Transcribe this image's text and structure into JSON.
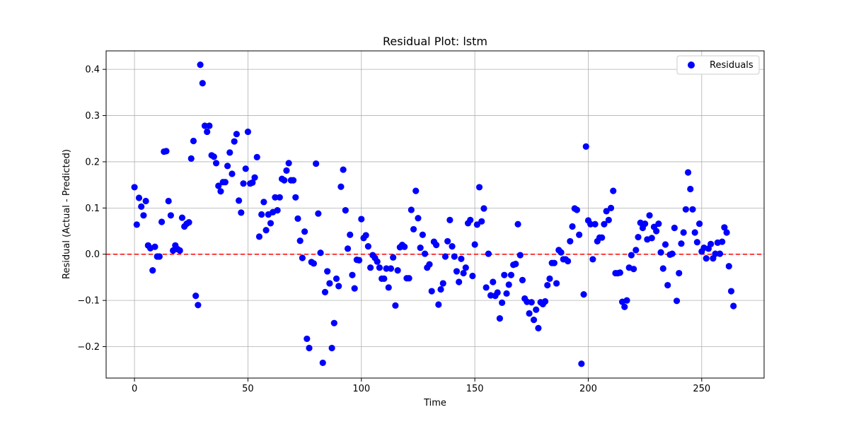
{
  "chart_data": {
    "type": "scatter",
    "title": "Residual Plot: lstm",
    "xlabel": "Time",
    "ylabel": "Residual (Actual - Predicted)",
    "xlim": [
      -12.5,
      277.5
    ],
    "ylim": [
      -0.268,
      0.44
    ],
    "x_ticks": [
      0,
      50,
      100,
      150,
      200,
      250
    ],
    "y_ticks": [
      -0.2,
      -0.1,
      0.0,
      0.1,
      0.2,
      0.3,
      0.4
    ],
    "x_tick_labels": [
      "0",
      "50",
      "100",
      "150",
      "200",
      "250"
    ],
    "y_tick_labels": [
      "−0.2",
      "−0.1",
      "0.0",
      "0.1",
      "0.2",
      "0.3",
      "0.4"
    ],
    "grid": true,
    "legend": {
      "position": "top-right",
      "entries": [
        "Residuals"
      ]
    },
    "reference_line": {
      "y": 0,
      "style": "dashed",
      "color": "#ff0000"
    },
    "series": [
      {
        "name": "Residuals",
        "color": "#0000ff",
        "points": [
          [
            0,
            0.145
          ],
          [
            1,
            0.064
          ],
          [
            2,
            0.122
          ],
          [
            3,
            0.103
          ],
          [
            4,
            0.084
          ],
          [
            5,
            0.115
          ],
          [
            6,
            0.019
          ],
          [
            7,
            0.013
          ],
          [
            8,
            -0.035
          ],
          [
            9,
            0.016
          ],
          [
            10,
            -0.005
          ],
          [
            11,
            -0.005
          ],
          [
            12,
            0.07
          ],
          [
            13,
            0.222
          ],
          [
            14,
            0.223
          ],
          [
            15,
            0.115
          ],
          [
            16,
            0.084
          ],
          [
            17,
            0.008
          ],
          [
            18,
            0.019
          ],
          [
            19,
            0.011
          ],
          [
            20,
            0.008
          ],
          [
            21,
            0.079
          ],
          [
            22,
            0.06
          ],
          [
            23,
            0.066
          ],
          [
            24,
            0.069
          ],
          [
            25,
            0.207
          ],
          [
            26,
            0.245
          ],
          [
            27,
            -0.09
          ],
          [
            28,
            -0.11
          ],
          [
            29,
            0.41
          ],
          [
            30,
            0.37
          ],
          [
            31,
            0.278
          ],
          [
            32,
            0.265
          ],
          [
            33,
            0.278
          ],
          [
            34,
            0.214
          ],
          [
            35,
            0.211
          ],
          [
            36,
            0.197
          ],
          [
            37,
            0.148
          ],
          [
            38,
            0.136
          ],
          [
            39,
            0.156
          ],
          [
            40,
            0.156
          ],
          [
            41,
            0.191
          ],
          [
            42,
            0.22
          ],
          [
            43,
            0.174
          ],
          [
            44,
            0.244
          ],
          [
            45,
            0.26
          ],
          [
            46,
            0.116
          ],
          [
            47,
            0.09
          ],
          [
            48,
            0.153
          ],
          [
            49,
            0.185
          ],
          [
            50,
            0.265
          ],
          [
            51,
            0.153
          ],
          [
            52,
            0.155
          ],
          [
            53,
            0.166
          ],
          [
            54,
            0.21
          ],
          [
            55,
            0.038
          ],
          [
            56,
            0.086
          ],
          [
            57,
            0.113
          ],
          [
            58,
            0.052
          ],
          [
            59,
            0.086
          ],
          [
            60,
            0.067
          ],
          [
            61,
            0.091
          ],
          [
            62,
            0.123
          ],
          [
            63,
            0.095
          ],
          [
            64,
            0.123
          ],
          [
            65,
            0.163
          ],
          [
            66,
            0.16
          ],
          [
            67,
            0.181
          ],
          [
            68,
            0.197
          ],
          [
            69,
            0.16
          ],
          [
            70,
            0.16
          ],
          [
            71,
            0.123
          ],
          [
            72,
            0.077
          ],
          [
            73,
            0.029
          ],
          [
            74,
            -0.008
          ],
          [
            75,
            0.049
          ],
          [
            76,
            -0.183
          ],
          [
            77,
            -0.203
          ],
          [
            78,
            -0.017
          ],
          [
            79,
            -0.02
          ],
          [
            80,
            0.196
          ],
          [
            81,
            0.088
          ],
          [
            82,
            0.003
          ],
          [
            83,
            -0.235
          ],
          [
            84,
            -0.082
          ],
          [
            85,
            -0.037
          ],
          [
            86,
            -0.063
          ],
          [
            87,
            -0.203
          ],
          [
            88,
            -0.149
          ],
          [
            89,
            -0.053
          ],
          [
            90,
            -0.069
          ],
          [
            91,
            0.146
          ],
          [
            92,
            0.183
          ],
          [
            93,
            0.095
          ],
          [
            94,
            0.012
          ],
          [
            95,
            0.042
          ],
          [
            96,
            -0.045
          ],
          [
            97,
            -0.074
          ],
          [
            98,
            -0.012
          ],
          [
            99,
            -0.013
          ],
          [
            100,
            0.076
          ],
          [
            101,
            0.035
          ],
          [
            102,
            0.041
          ],
          [
            103,
            0.017
          ],
          [
            104,
            -0.029
          ],
          [
            105,
            -0.002
          ],
          [
            106,
            -0.008
          ],
          [
            107,
            -0.016
          ],
          [
            108,
            -0.029
          ],
          [
            109,
            -0.053
          ],
          [
            110,
            -0.053
          ],
          [
            111,
            -0.031
          ],
          [
            112,
            -0.072
          ],
          [
            113,
            -0.031
          ],
          [
            114,
            -0.007
          ],
          [
            115,
            -0.111
          ],
          [
            116,
            -0.035
          ],
          [
            117,
            0.015
          ],
          [
            118,
            0.02
          ],
          [
            119,
            0.016
          ],
          [
            120,
            -0.052
          ],
          [
            121,
            -0.052
          ],
          [
            122,
            0.096
          ],
          [
            123,
            0.054
          ],
          [
            124,
            0.137
          ],
          [
            125,
            0.078
          ],
          [
            126,
            0.014
          ],
          [
            127,
            0.042
          ],
          [
            128,
            0.001
          ],
          [
            129,
            -0.029
          ],
          [
            130,
            -0.022
          ],
          [
            131,
            -0.08
          ],
          [
            132,
            0.027
          ],
          [
            133,
            0.02
          ],
          [
            134,
            -0.109
          ],
          [
            135,
            -0.076
          ],
          [
            136,
            -0.063
          ],
          [
            137,
            -0.005
          ],
          [
            138,
            0.028
          ],
          [
            139,
            0.074
          ],
          [
            140,
            0.017
          ],
          [
            141,
            -0.005
          ],
          [
            142,
            -0.037
          ],
          [
            143,
            -0.06
          ],
          [
            144,
            -0.01
          ],
          [
            145,
            -0.041
          ],
          [
            146,
            -0.029
          ],
          [
            147,
            0.067
          ],
          [
            148,
            0.074
          ],
          [
            149,
            -0.047
          ],
          [
            150,
            0.021
          ],
          [
            151,
            0.064
          ],
          [
            152,
            0.145
          ],
          [
            153,
            0.071
          ],
          [
            154,
            0.099
          ],
          [
            155,
            -0.072
          ],
          [
            156,
            0.001
          ],
          [
            157,
            -0.089
          ],
          [
            158,
            -0.06
          ],
          [
            159,
            -0.09
          ],
          [
            160,
            -0.083
          ],
          [
            161,
            -0.139
          ],
          [
            162,
            -0.105
          ],
          [
            163,
            -0.045
          ],
          [
            164,
            -0.085
          ],
          [
            165,
            -0.066
          ],
          [
            166,
            -0.045
          ],
          [
            167,
            -0.023
          ],
          [
            168,
            -0.021
          ],
          [
            169,
            0.065
          ],
          [
            170,
            -0.002
          ],
          [
            171,
            -0.056
          ],
          [
            172,
            -0.096
          ],
          [
            173,
            -0.103
          ],
          [
            174,
            -0.128
          ],
          [
            175,
            -0.104
          ],
          [
            176,
            -0.142
          ],
          [
            177,
            -0.12
          ],
          [
            178,
            -0.16
          ],
          [
            179,
            -0.104
          ],
          [
            180,
            -0.108
          ],
          [
            181,
            -0.102
          ],
          [
            182,
            -0.067
          ],
          [
            183,
            -0.053
          ],
          [
            184,
            -0.019
          ],
          [
            185,
            -0.019
          ],
          [
            186,
            -0.063
          ],
          [
            187,
            0.009
          ],
          [
            188,
            0.004
          ],
          [
            189,
            -0.011
          ],
          [
            190,
            -0.011
          ],
          [
            191,
            -0.015
          ],
          [
            192,
            0.028
          ],
          [
            193,
            0.06
          ],
          [
            194,
            0.099
          ],
          [
            195,
            0.096
          ],
          [
            196,
            0.042
          ],
          [
            197,
            -0.237
          ],
          [
            198,
            -0.087
          ],
          [
            199,
            0.233
          ],
          [
            200,
            0.073
          ],
          [
            201,
            0.065
          ],
          [
            202,
            -0.011
          ],
          [
            203,
            0.065
          ],
          [
            204,
            0.028
          ],
          [
            205,
            0.036
          ],
          [
            206,
            0.036
          ],
          [
            207,
            0.065
          ],
          [
            208,
            0.093
          ],
          [
            209,
            0.074
          ],
          [
            210,
            0.1
          ],
          [
            211,
            0.137
          ],
          [
            212,
            -0.041
          ],
          [
            213,
            -0.041
          ],
          [
            214,
            -0.04
          ],
          [
            215,
            -0.103
          ],
          [
            216,
            -0.114
          ],
          [
            217,
            -0.1
          ],
          [
            218,
            -0.029
          ],
          [
            219,
            -0.002
          ],
          [
            220,
            -0.032
          ],
          [
            221,
            0.009
          ],
          [
            222,
            0.037
          ],
          [
            223,
            0.068
          ],
          [
            224,
            0.057
          ],
          [
            225,
            0.066
          ],
          [
            226,
            0.032
          ],
          [
            227,
            0.084
          ],
          [
            228,
            0.035
          ],
          [
            229,
            0.059
          ],
          [
            230,
            0.05
          ],
          [
            231,
            0.066
          ],
          [
            232,
            0.004
          ],
          [
            233,
            -0.031
          ],
          [
            234,
            0.021
          ],
          [
            235,
            -0.067
          ],
          [
            236,
            -0.001
          ],
          [
            237,
            0.001
          ],
          [
            238,
            0.057
          ],
          [
            239,
            -0.101
          ],
          [
            240,
            -0.041
          ],
          [
            241,
            0.023
          ],
          [
            242,
            0.047
          ],
          [
            243,
            0.097
          ],
          [
            244,
            0.177
          ],
          [
            245,
            0.141
          ],
          [
            246,
            0.097
          ],
          [
            247,
            0.047
          ],
          [
            248,
            0.026
          ],
          [
            249,
            0.066
          ],
          [
            250,
            0.006
          ],
          [
            251,
            0.014
          ],
          [
            252,
            -0.009
          ],
          [
            253,
            0.012
          ],
          [
            254,
            0.022
          ],
          [
            255,
            -0.009
          ],
          [
            256,
            0.001
          ],
          [
            257,
            0.025
          ],
          [
            258,
            0.001
          ],
          [
            259,
            0.027
          ],
          [
            260,
            0.058
          ],
          [
            261,
            0.047
          ],
          [
            262,
            -0.026
          ],
          [
            263,
            -0.08
          ],
          [
            264,
            -0.112
          ]
        ]
      }
    ]
  }
}
